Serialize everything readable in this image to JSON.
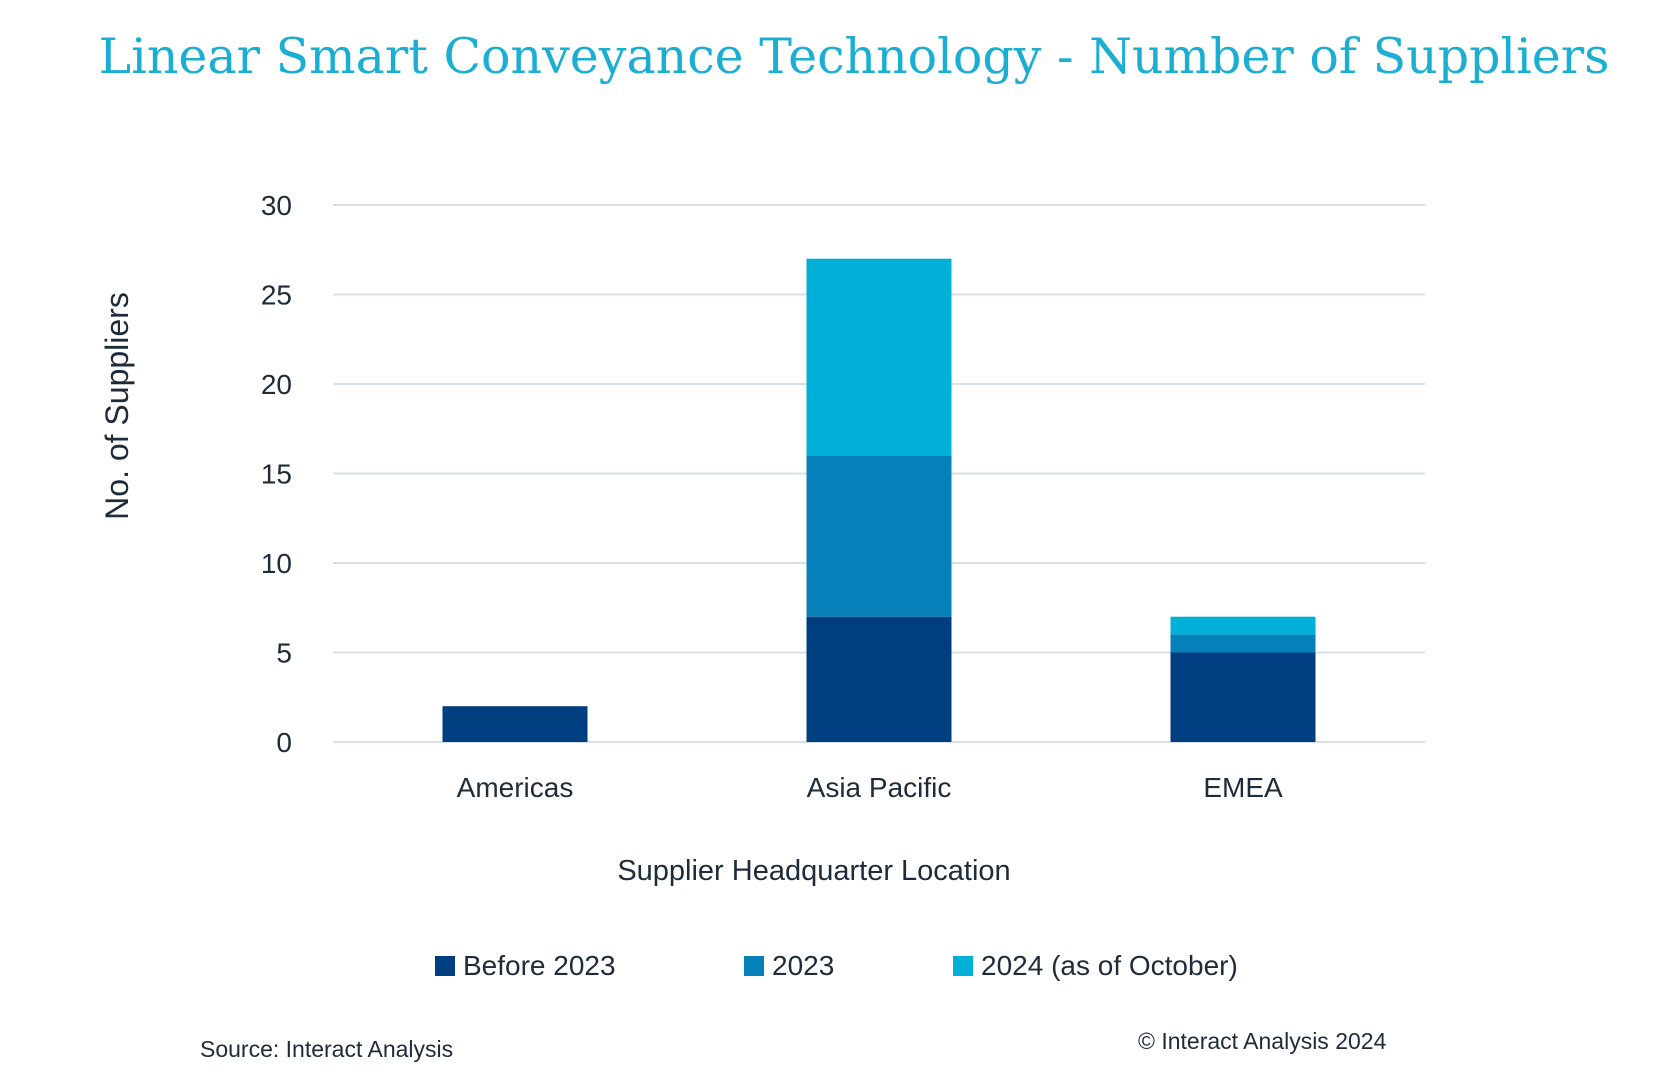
{
  "chart_data": {
    "type": "bar",
    "stacked": true,
    "title": "Linear Smart Conveyance Technology - Number of Suppliers",
    "xlabel": "Supplier Headquarter Location",
    "ylabel": "No. of Suppliers",
    "ylim": [
      0,
      30
    ],
    "yticks": [
      0,
      5,
      10,
      15,
      20,
      25,
      30
    ],
    "grid": true,
    "legend_position": "bottom",
    "categories": [
      "Americas",
      "Asia Pacific",
      "EMEA"
    ],
    "series": [
      {
        "name": "Before 2023",
        "color": "#003f7f",
        "values": [
          2,
          7,
          5
        ]
      },
      {
        "name": "2023",
        "color": "#0580b8",
        "values": [
          0,
          9,
          1
        ]
      },
      {
        "name": "2024 (as of October)",
        "color": "#00b0d6",
        "values": [
          0,
          11,
          1
        ]
      }
    ]
  },
  "footer": {
    "source": "Source: Interact Analysis",
    "copyright": "© Interact Analysis 2024"
  }
}
